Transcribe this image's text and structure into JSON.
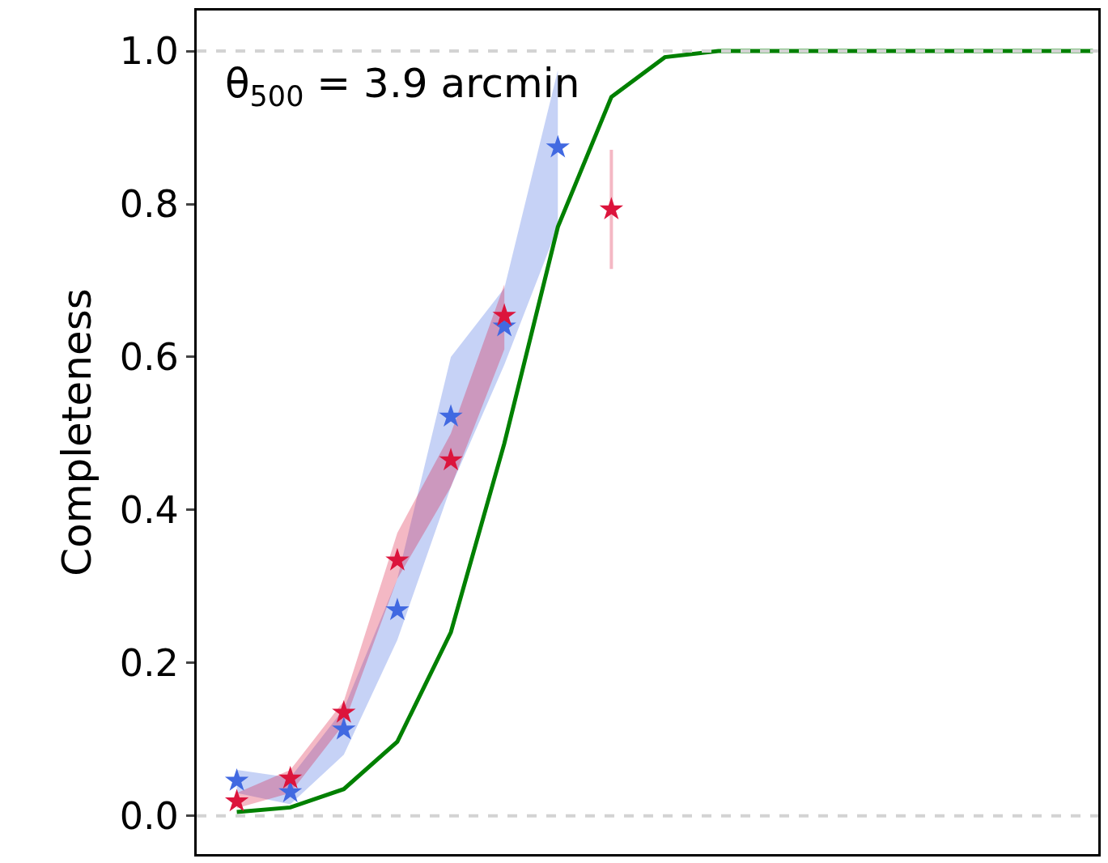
{
  "chart_data": {
    "type": "scatter",
    "ylabel": "Completeness",
    "categories": [
      null,
      null,
      null,
      null,
      null,
      null,
      null,
      null,
      null,
      null,
      null,
      null,
      null,
      null,
      null,
      null,
      null
    ],
    "series": [
      {
        "type": "line",
        "color": "#008000",
        "marker": "none",
        "values": [
          0.005,
          0.011,
          0.035,
          0.097,
          0.24,
          0.487,
          0.77,
          0.94,
          0.992,
          1.0,
          1.0,
          1.0,
          1.0,
          1.0,
          1.0,
          1.0,
          1.0
        ]
      },
      {
        "type": "scatter",
        "color": "#4169e1",
        "marker": "star",
        "values": [
          0.046,
          0.031,
          0.113,
          0.269,
          0.522,
          0.64,
          0.874,
          null,
          null,
          null,
          null,
          null,
          null,
          null,
          null,
          null,
          null
        ],
        "lower": [
          0.03,
          0.015,
          0.08,
          0.23,
          0.43,
          0.59,
          0.77,
          null,
          null,
          null,
          null,
          null,
          null,
          null,
          null,
          null,
          null
        ],
        "upper": [
          0.06,
          0.05,
          0.14,
          0.31,
          0.6,
          0.69,
          0.975,
          null,
          null,
          null,
          null,
          null,
          null,
          null,
          null,
          null,
          null
        ]
      },
      {
        "type": "scatter",
        "color": "#dc143c",
        "marker": "star",
        "values": [
          0.019,
          0.049,
          0.135,
          0.334,
          0.465,
          0.654,
          null,
          0.793,
          null,
          null,
          null,
          null,
          null,
          null,
          null,
          null,
          null
        ],
        "lower": [
          0.01,
          0.03,
          0.12,
          0.31,
          0.43,
          0.61,
          null,
          null,
          null,
          null,
          null,
          null,
          null,
          null,
          null,
          null,
          null
        ],
        "upper": [
          0.03,
          0.06,
          0.15,
          0.37,
          0.5,
          0.695,
          null,
          null,
          null,
          null,
          null,
          null,
          null,
          null,
          null,
          null,
          null
        ],
        "errors": [
          null,
          null,
          null,
          null,
          null,
          null,
          null,
          [
            0.715,
            0.871
          ],
          null,
          null,
          null,
          null,
          null,
          null,
          null,
          null,
          null
        ]
      }
    ],
    "ylim": [
      -0.05,
      1.053
    ],
    "yticks": [
      {
        "value": 0,
        "label": "0.0"
      },
      0.2,
      0.4,
      0.6,
      0.8,
      {
        "value": 1,
        "label": "1.0"
      }
    ],
    "tick_labels": "y",
    "grid": false,
    "legend": false,
    "ref_lines": [
      {
        "axis": "y",
        "value": 0,
        "color": "#d3d3d3",
        "line_style": "dashed"
      },
      {
        "axis": "y",
        "value": 1,
        "color": "#d3d3d3",
        "line_style": "dashed"
      }
    ],
    "annotations": [
      "θ$_{500}$ = 3.9 arcmin"
    ]
  }
}
